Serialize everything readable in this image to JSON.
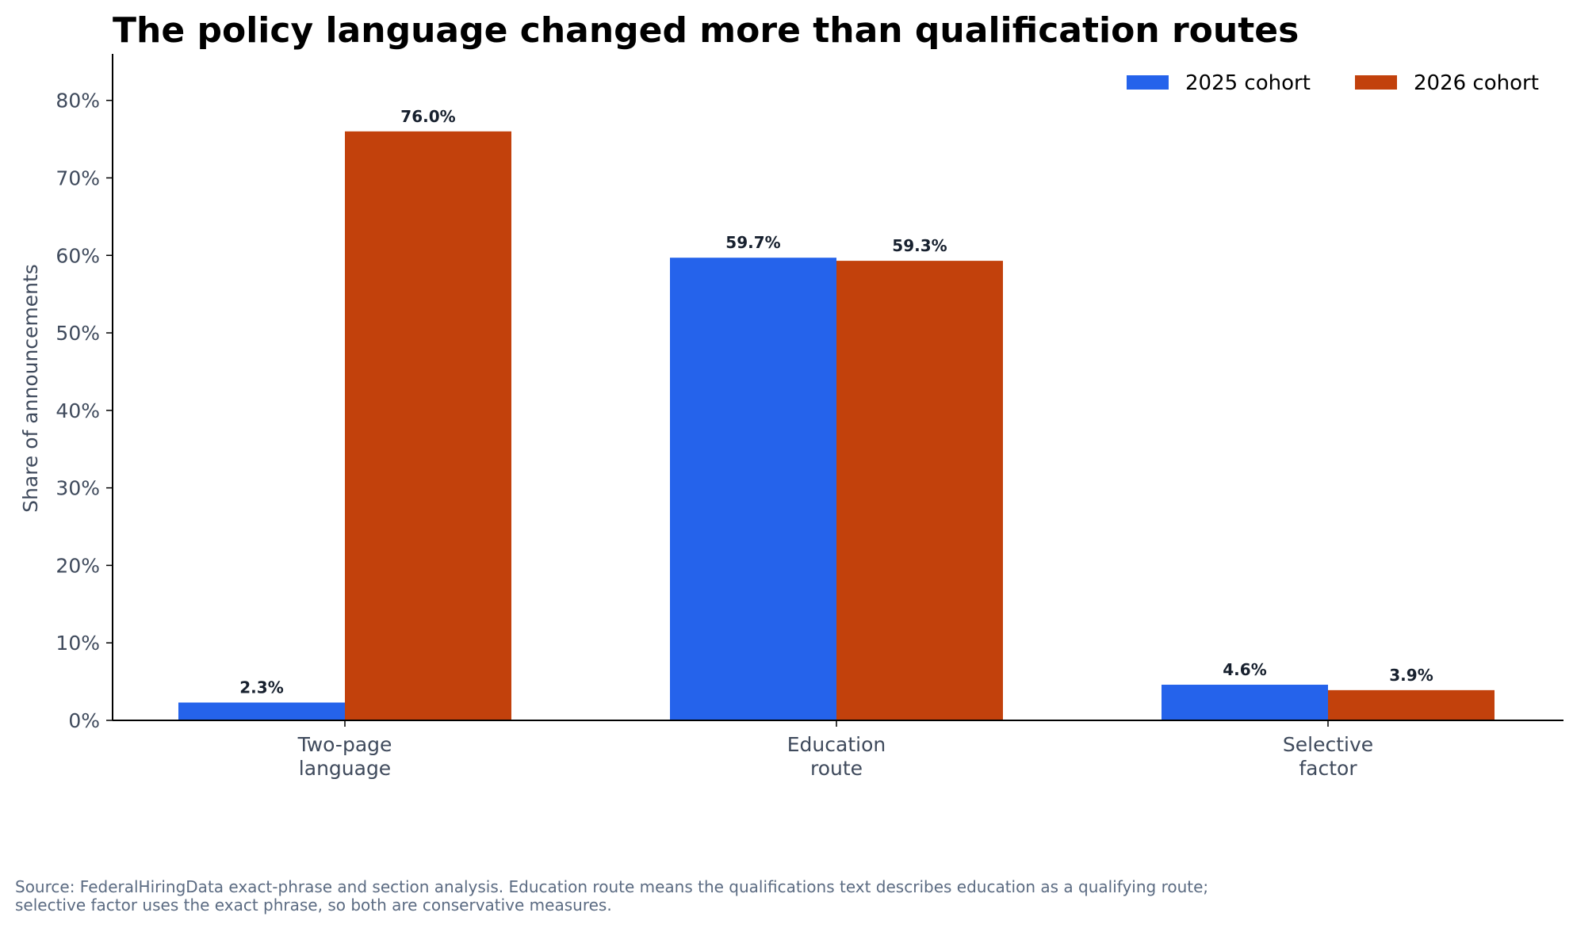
{
  "chart_data": {
    "type": "bar",
    "title": "The policy language changed more than qualification routes",
    "ylabel": "Share of announcements",
    "xlabel": "",
    "categories": [
      [
        "Two-page",
        "language"
      ],
      [
        "Education",
        "route"
      ],
      [
        "Selective",
        "factor"
      ]
    ],
    "series": [
      {
        "name": "2025 cohort",
        "color": "#2563eb",
        "values": [
          2.3,
          59.7,
          4.6
        ]
      },
      {
        "name": "2026 cohort",
        "color": "#c2410c",
        "values": [
          76.0,
          59.3,
          3.9
        ]
      }
    ],
    "ylim": [
      0,
      86
    ],
    "yticks": [
      0,
      10,
      20,
      30,
      40,
      50,
      60,
      70,
      80
    ],
    "value_format": "percent_1dp",
    "grid": false,
    "legend": "top-right"
  },
  "footnote": [
    "Source: FederalHiringData exact-phrase and section analysis. Education route means the qualifications text describes education as a qualifying route;",
    "selective factor uses the exact phrase, so both are conservative measures."
  ]
}
